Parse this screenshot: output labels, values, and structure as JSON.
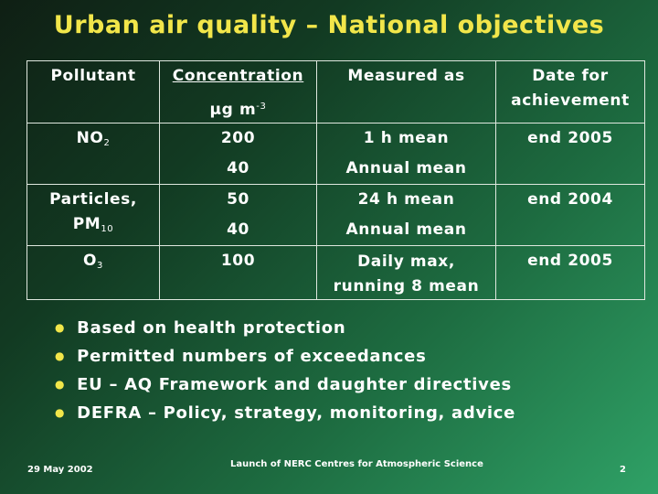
{
  "title": "Urban air quality – National objectives",
  "table": {
    "headers": {
      "pollutant": "Pollutant",
      "concentration": "Concentration",
      "concentration_unit_base": "µg m",
      "concentration_unit_exp": "-3",
      "measured_as": "Measured as",
      "date_line1": "Date for",
      "date_line2": "achievement"
    },
    "rows": [
      {
        "pollutant_base": "NO",
        "pollutant_sub": "2",
        "pollutant_line2": "",
        "conc1": "200",
        "conc2": "40",
        "measure1": "1 h mean",
        "measure2": "Annual mean",
        "date": "end 2005"
      },
      {
        "pollutant_base": "Particles,",
        "pollutant_sub": "",
        "pollutant_line2": "PM",
        "pollutant_line2_sub": "10",
        "conc1": "50",
        "conc2": "40",
        "measure1": "24 h mean",
        "measure2": "Annual mean",
        "date": "end 2004"
      },
      {
        "pollutant_base": "O",
        "pollutant_sub": "3",
        "pollutant_line2": "",
        "conc1": "100",
        "conc2": "",
        "measure1": "Daily max,",
        "measure2": "running 8 mean",
        "date": "end 2005"
      }
    ]
  },
  "bullets": [
    "Based on health protection",
    "Permitted numbers of exceedances",
    "EU – AQ Framework and daughter directives",
    "DEFRA – Policy, strategy, monitoring, advice"
  ],
  "footer": {
    "date": "29 May 2002",
    "event": "Launch of NERC Centres for Atmospheric Science",
    "page": "2"
  },
  "colors": {
    "title": "#f2e64a",
    "background_dark": "#0f1f14",
    "background_light": "#2fa166",
    "bullet": "#f2e64a"
  }
}
